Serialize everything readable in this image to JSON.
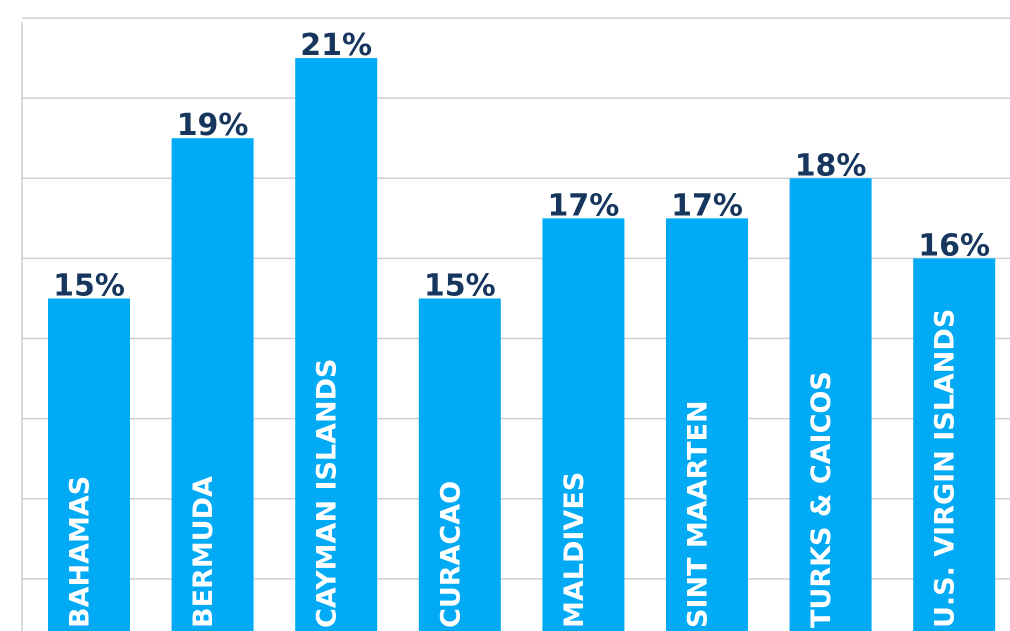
{
  "chart_data": {
    "type": "bar",
    "categories": [
      "BAHAMAS",
      "BERMUDA",
      "CAYMAN ISLANDS",
      "CURACAO",
      "MALDIVES",
      "SINT MAARTEN",
      "TURKS & CAICOS",
      "U.S. VIRGIN ISLANDS"
    ],
    "values": [
      15,
      19,
      21,
      15,
      17,
      17,
      18,
      16
    ],
    "value_labels": [
      "15%",
      "19%",
      "21%",
      "15%",
      "17%",
      "17%",
      "18%",
      "16%"
    ],
    "color": "#00aaf4",
    "ylim": [
      6.7,
      22.45
    ],
    "yticks": [
      8,
      10,
      12,
      14,
      16,
      18,
      20,
      22
    ],
    "grid": true
  }
}
